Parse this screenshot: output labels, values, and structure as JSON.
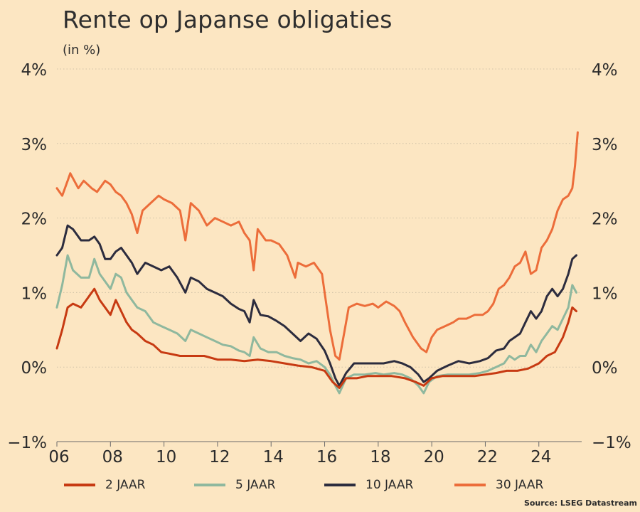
{
  "title": "Rente op Japanse obligaties",
  "subtitle": "(in %)",
  "source": "Source: LSEG Datastream",
  "colors": {
    "background": "#fce6c2",
    "2y": "#c73a12",
    "5y": "#8fb89e",
    "10y": "#2c2c3e",
    "30y": "#ec6d3a",
    "grid": "#cfc2a8"
  },
  "legend": [
    {
      "label": "2 JAAR",
      "color": "#c73a12"
    },
    {
      "label": "5 JAAR",
      "color": "#8fb89e"
    },
    {
      "label": "10 JAAR",
      "color": "#2c2c3e"
    },
    {
      "label": "30 JAAR",
      "color": "#ec6d3a"
    }
  ],
  "chart_data": {
    "type": "line",
    "title": "Rente op Japanse obligaties",
    "subtitle": "(in %)",
    "xlabel": "",
    "ylabel": "",
    "xlim": [
      2006,
      2025.6
    ],
    "ylim": [
      -1,
      4
    ],
    "x_ticks": [
      2006,
      2008,
      2010,
      2012,
      2014,
      2016,
      2018,
      2020,
      2022,
      2024
    ],
    "x_tick_labels": [
      "06",
      "08",
      "10",
      "12",
      "14",
      "16",
      "18",
      "20",
      "22",
      "24"
    ],
    "y_ticks": [
      -1,
      0,
      1,
      2,
      3,
      4
    ],
    "y_tick_labels": [
      "−1%",
      "0%",
      "1%",
      "2%",
      "3%",
      "4%"
    ],
    "grid": "horizontal dotted",
    "legend_position": "bottom",
    "series": [
      {
        "name": "30 JAAR",
        "color": "#ec6d3a",
        "x": [
          2006.0,
          2006.2,
          2006.4,
          2006.5,
          2006.8,
          2007.0,
          2007.3,
          2007.5,
          2007.8,
          2008.0,
          2008.2,
          2008.4,
          2008.6,
          2008.8,
          2009.0,
          2009.2,
          2009.5,
          2009.8,
          2010.0,
          2010.3,
          2010.6,
          2010.8,
          2011.0,
          2011.3,
          2011.6,
          2011.9,
          2012.2,
          2012.5,
          2012.8,
          2013.0,
          2013.2,
          2013.35,
          2013.5,
          2013.8,
          2014.0,
          2014.3,
          2014.6,
          2014.9,
          2015.0,
          2015.3,
          2015.6,
          2015.9,
          2016.0,
          2016.2,
          2016.4,
          2016.55,
          2016.75,
          2016.9,
          2017.2,
          2017.5,
          2017.8,
          2018.0,
          2018.3,
          2018.6,
          2018.8,
          2019.0,
          2019.3,
          2019.6,
          2019.8,
          2020.0,
          2020.2,
          2020.5,
          2020.8,
          2021.0,
          2021.3,
          2021.6,
          2021.9,
          2022.1,
          2022.3,
          2022.5,
          2022.7,
          2022.9,
          2023.1,
          2023.3,
          2023.5,
          2023.7,
          2023.9,
          2024.1,
          2024.3,
          2024.5,
          2024.7,
          2024.9,
          2025.1,
          2025.25,
          2025.35,
          2025.45
        ],
        "values": [
          2.4,
          2.3,
          2.5,
          2.6,
          2.4,
          2.5,
          2.4,
          2.35,
          2.5,
          2.45,
          2.35,
          2.3,
          2.2,
          2.05,
          1.8,
          2.1,
          2.2,
          2.3,
          2.25,
          2.2,
          2.1,
          1.7,
          2.2,
          2.1,
          1.9,
          2.0,
          1.95,
          1.9,
          1.95,
          1.8,
          1.7,
          1.3,
          1.85,
          1.7,
          1.7,
          1.65,
          1.5,
          1.2,
          1.4,
          1.35,
          1.4,
          1.25,
          1.0,
          0.5,
          0.15,
          0.1,
          0.5,
          0.8,
          0.85,
          0.82,
          0.85,
          0.8,
          0.88,
          0.82,
          0.75,
          0.6,
          0.4,
          0.25,
          0.2,
          0.4,
          0.5,
          0.55,
          0.6,
          0.65,
          0.65,
          0.7,
          0.7,
          0.75,
          0.85,
          1.05,
          1.1,
          1.2,
          1.35,
          1.4,
          1.55,
          1.25,
          1.3,
          1.6,
          1.7,
          1.85,
          2.1,
          2.25,
          2.3,
          2.4,
          2.7,
          3.15
        ]
      },
      {
        "name": "10 JAAR",
        "color": "#2c2c3e",
        "x": [
          2006.0,
          2006.2,
          2006.4,
          2006.6,
          2006.9,
          2007.2,
          2007.4,
          2007.6,
          2007.8,
          2008.0,
          2008.2,
          2008.4,
          2008.6,
          2008.8,
          2009.0,
          2009.3,
          2009.6,
          2009.9,
          2010.2,
          2010.5,
          2010.8,
          2011.0,
          2011.3,
          2011.6,
          2011.9,
          2012.2,
          2012.5,
          2012.8,
          2013.0,
          2013.2,
          2013.35,
          2013.6,
          2013.9,
          2014.2,
          2014.5,
          2014.8,
          2015.1,
          2015.4,
          2015.7,
          2016.0,
          2016.2,
          2016.4,
          2016.55,
          2016.8,
          2017.1,
          2017.5,
          2017.9,
          2018.2,
          2018.6,
          2018.9,
          2019.2,
          2019.5,
          2019.7,
          2019.9,
          2020.2,
          2020.6,
          2021.0,
          2021.4,
          2021.8,
          2022.1,
          2022.4,
          2022.7,
          2022.9,
          2023.1,
          2023.3,
          2023.5,
          2023.7,
          2023.9,
          2024.1,
          2024.3,
          2024.5,
          2024.7,
          2024.9,
          2025.1,
          2025.25,
          2025.4
        ],
        "values": [
          1.5,
          1.6,
          1.9,
          1.85,
          1.7,
          1.7,
          1.75,
          1.65,
          1.45,
          1.45,
          1.55,
          1.6,
          1.5,
          1.4,
          1.25,
          1.4,
          1.35,
          1.3,
          1.35,
          1.2,
          1.0,
          1.2,
          1.15,
          1.05,
          1.0,
          0.95,
          0.85,
          0.78,
          0.75,
          0.6,
          0.9,
          0.7,
          0.68,
          0.62,
          0.55,
          0.45,
          0.35,
          0.45,
          0.38,
          0.22,
          0.05,
          -0.15,
          -0.25,
          -0.08,
          0.05,
          0.05,
          0.05,
          0.05,
          0.08,
          0.05,
          0.0,
          -0.1,
          -0.2,
          -0.15,
          -0.05,
          0.02,
          0.08,
          0.05,
          0.08,
          0.12,
          0.22,
          0.25,
          0.35,
          0.4,
          0.45,
          0.6,
          0.75,
          0.65,
          0.75,
          0.95,
          1.05,
          0.95,
          1.05,
          1.25,
          1.45,
          1.5
        ]
      },
      {
        "name": "5 JAAR",
        "color": "#8fb89e",
        "x": [
          2006.0,
          2006.2,
          2006.4,
          2006.6,
          2006.9,
          2007.2,
          2007.4,
          2007.6,
          2007.8,
          2008.0,
          2008.2,
          2008.4,
          2008.6,
          2008.8,
          2009.0,
          2009.3,
          2009.6,
          2009.9,
          2010.2,
          2010.5,
          2010.8,
          2011.0,
          2011.3,
          2011.6,
          2011.9,
          2012.2,
          2012.5,
          2012.8,
          2013.0,
          2013.2,
          2013.35,
          2013.6,
          2013.9,
          2014.2,
          2014.5,
          2014.8,
          2015.1,
          2015.4,
          2015.7,
          2016.0,
          2016.2,
          2016.4,
          2016.55,
          2016.8,
          2017.1,
          2017.5,
          2017.9,
          2018.2,
          2018.6,
          2018.9,
          2019.2,
          2019.5,
          2019.7,
          2019.9,
          2020.2,
          2020.6,
          2021.0,
          2021.4,
          2021.8,
          2022.1,
          2022.4,
          2022.7,
          2022.9,
          2023.1,
          2023.3,
          2023.5,
          2023.7,
          2023.9,
          2024.1,
          2024.3,
          2024.5,
          2024.7,
          2024.9,
          2025.1,
          2025.25,
          2025.4
        ],
        "values": [
          0.8,
          1.1,
          1.5,
          1.3,
          1.2,
          1.2,
          1.45,
          1.25,
          1.15,
          1.05,
          1.25,
          1.2,
          1.0,
          0.9,
          0.8,
          0.75,
          0.6,
          0.55,
          0.5,
          0.45,
          0.35,
          0.5,
          0.45,
          0.4,
          0.35,
          0.3,
          0.28,
          0.22,
          0.2,
          0.15,
          0.4,
          0.25,
          0.2,
          0.2,
          0.15,
          0.12,
          0.1,
          0.05,
          0.08,
          0.0,
          -0.1,
          -0.25,
          -0.35,
          -0.15,
          -0.1,
          -0.1,
          -0.08,
          -0.1,
          -0.08,
          -0.1,
          -0.15,
          -0.25,
          -0.35,
          -0.2,
          -0.12,
          -0.1,
          -0.1,
          -0.1,
          -0.08,
          -0.05,
          0.0,
          0.05,
          0.15,
          0.1,
          0.15,
          0.15,
          0.3,
          0.2,
          0.35,
          0.45,
          0.55,
          0.5,
          0.65,
          0.8,
          1.1,
          1.0
        ]
      },
      {
        "name": "2 JAAR",
        "color": "#c73a12",
        "x": [
          2006.0,
          2006.2,
          2006.4,
          2006.6,
          2006.9,
          2007.2,
          2007.4,
          2007.6,
          2007.8,
          2008.0,
          2008.2,
          2008.4,
          2008.6,
          2008.8,
          2009.0,
          2009.3,
          2009.6,
          2009.9,
          2010.2,
          2010.6,
          2011.0,
          2011.5,
          2012.0,
          2012.5,
          2013.0,
          2013.5,
          2014.0,
          2014.5,
          2015.0,
          2015.5,
          2016.0,
          2016.3,
          2016.55,
          2016.8,
          2017.2,
          2017.6,
          2018.0,
          2018.5,
          2019.0,
          2019.4,
          2019.7,
          2020.0,
          2020.4,
          2020.8,
          2021.2,
          2021.6,
          2022.0,
          2022.4,
          2022.8,
          2023.2,
          2023.6,
          2024.0,
          2024.3,
          2024.6,
          2024.9,
          2025.1,
          2025.25,
          2025.4
        ],
        "values": [
          0.25,
          0.5,
          0.8,
          0.85,
          0.8,
          0.95,
          1.05,
          0.9,
          0.8,
          0.7,
          0.9,
          0.75,
          0.6,
          0.5,
          0.45,
          0.35,
          0.3,
          0.2,
          0.18,
          0.15,
          0.15,
          0.15,
          0.1,
          0.1,
          0.08,
          0.1,
          0.08,
          0.05,
          0.02,
          0.0,
          -0.05,
          -0.2,
          -0.28,
          -0.15,
          -0.15,
          -0.12,
          -0.12,
          -0.12,
          -0.15,
          -0.2,
          -0.25,
          -0.15,
          -0.12,
          -0.12,
          -0.12,
          -0.12,
          -0.1,
          -0.08,
          -0.05,
          -0.05,
          -0.02,
          0.05,
          0.15,
          0.2,
          0.4,
          0.6,
          0.8,
          0.75
        ]
      }
    ]
  }
}
